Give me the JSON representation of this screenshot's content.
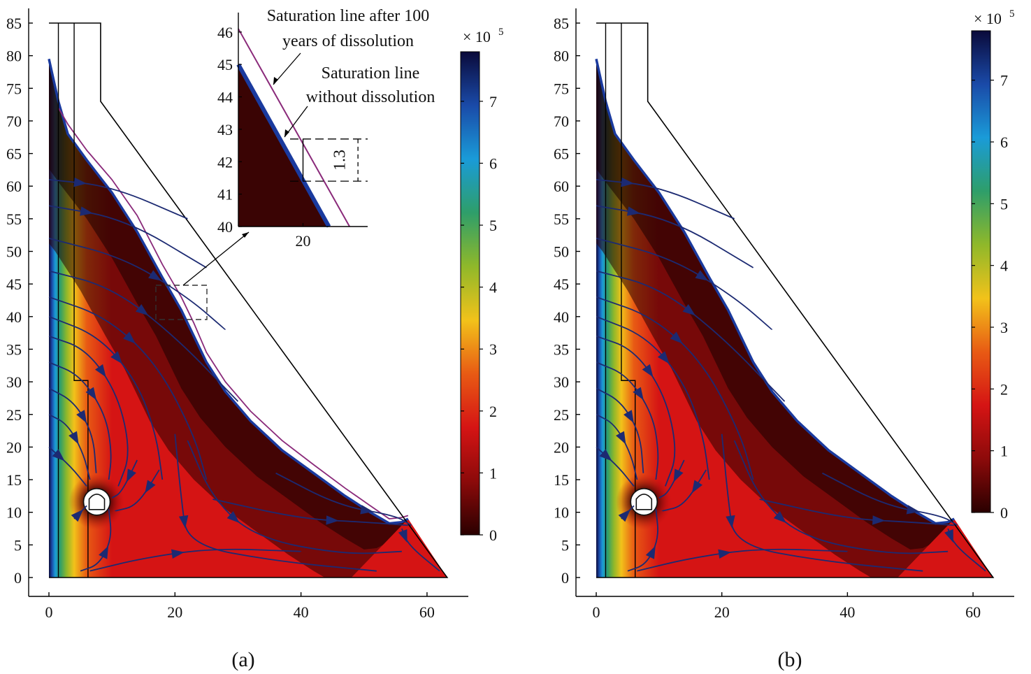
{
  "chart_data": [
    {
      "type": "heatmap",
      "panel_caption": "(a)",
      "xlabel": "",
      "ylabel": "",
      "xlim": [
        0,
        65
      ],
      "ylim": [
        0,
        85
      ],
      "x_ticks": [
        0,
        20,
        40,
        60
      ],
      "y_ticks": [
        0,
        5,
        10,
        15,
        20,
        25,
        30,
        35,
        40,
        45,
        50,
        55,
        60,
        65,
        70,
        75,
        80,
        85
      ],
      "colorbar": {
        "multiplier_label": "× 10",
        "multiplier_exponent": "5",
        "ticks": [
          0,
          1,
          2,
          3,
          4,
          5,
          6,
          7
        ],
        "range": [
          0,
          7.8
        ],
        "colormap": [
          "#2a0000",
          "#8c0a0a",
          "#d51414",
          "#e85a14",
          "#f2c21a",
          "#8fb82a",
          "#2e9e6a",
          "#1a9bd8",
          "#1a4aa8",
          "#0a0a3a"
        ]
      },
      "saturation_line_initial": [
        [
          0,
          79.5
        ],
        [
          1.5,
          73
        ],
        [
          3,
          68
        ],
        [
          6,
          64
        ],
        [
          10,
          59
        ],
        [
          14,
          53
        ],
        [
          18,
          46
        ],
        [
          21,
          41
        ],
        [
          23,
          37
        ],
        [
          25,
          33
        ],
        [
          28,
          28.5
        ],
        [
          32,
          24
        ],
        [
          37,
          19.5
        ],
        [
          42,
          16
        ],
        [
          47,
          12.5
        ],
        [
          51,
          10
        ],
        [
          54,
          8.3
        ],
        [
          56,
          8.5
        ],
        [
          57,
          9
        ]
      ],
      "saturation_line_after_100_years": [
        [
          1.5,
          72
        ],
        [
          3,
          69.5
        ],
        [
          6,
          65.5
        ],
        [
          10,
          61
        ],
        [
          14,
          55.5
        ],
        [
          18,
          48
        ],
        [
          21,
          43
        ],
        [
          23,
          39
        ],
        [
          25,
          34.5
        ],
        [
          28,
          30
        ],
        [
          32,
          25.5
        ],
        [
          37,
          21
        ],
        [
          42,
          17.3
        ],
        [
          47,
          13.7
        ],
        [
          51,
          11
        ],
        [
          54,
          9
        ],
        [
          56,
          9.2
        ],
        [
          57,
          9.5
        ]
      ],
      "dam_outline": [
        [
          0,
          85
        ],
        [
          8.2,
          85
        ],
        [
          8.2,
          73
        ],
        [
          63.2,
          0
        ],
        [
          0,
          0
        ]
      ],
      "tunnel_center": [
        7.6,
        11.6
      ],
      "inset": {
        "xlim": [
          10,
          30
        ],
        "ylim": [
          40,
          46.6
        ],
        "x_ticks": [
          20
        ],
        "y_ticks": [
          40,
          41,
          42,
          43,
          44,
          45,
          46
        ],
        "annotation_1": "Saturation line after 100",
        "annotation_1b": "years of dissolution",
        "annotation_2": "Saturation line",
        "annotation_2b": "without dissolution",
        "rise_label": "1.3",
        "rise_value": 1.3
      }
    },
    {
      "type": "heatmap",
      "panel_caption": "(b)",
      "xlabel": "",
      "ylabel": "",
      "xlim": [
        0,
        65
      ],
      "ylim": [
        0,
        85
      ],
      "x_ticks": [
        0,
        20,
        40,
        60
      ],
      "y_ticks": [
        0,
        5,
        10,
        15,
        20,
        25,
        30,
        35,
        40,
        45,
        50,
        55,
        60,
        65,
        70,
        75,
        80,
        85
      ],
      "colorbar": {
        "multiplier_label": "× 10",
        "multiplier_exponent": "5",
        "ticks": [
          0,
          1,
          2,
          3,
          4,
          5,
          6,
          7
        ],
        "range": [
          0,
          7.8
        ],
        "colormap": [
          "#2a0000",
          "#8c0a0a",
          "#d51414",
          "#e85a14",
          "#f2c21a",
          "#8fb82a",
          "#2e9e6a",
          "#1a9bd8",
          "#1a4aa8",
          "#0a0a3a"
        ]
      },
      "saturation_line_initial": [
        [
          0,
          79.5
        ],
        [
          1.5,
          73
        ],
        [
          3,
          68
        ],
        [
          6,
          64
        ],
        [
          10,
          59
        ],
        [
          14,
          53
        ],
        [
          18,
          46
        ],
        [
          21,
          41
        ],
        [
          23,
          37
        ],
        [
          25,
          33
        ],
        [
          28,
          28.5
        ],
        [
          32,
          24
        ],
        [
          37,
          19.5
        ],
        [
          42,
          16
        ],
        [
          47,
          12.5
        ],
        [
          51,
          10
        ],
        [
          54,
          8.3
        ],
        [
          56,
          8.5
        ],
        [
          57,
          9
        ]
      ],
      "dam_outline": [
        [
          0,
          85
        ],
        [
          8.2,
          85
        ],
        [
          8.2,
          73
        ],
        [
          63.2,
          0
        ],
        [
          0,
          0
        ]
      ],
      "tunnel_center": [
        7.6,
        11.6
      ]
    }
  ]
}
